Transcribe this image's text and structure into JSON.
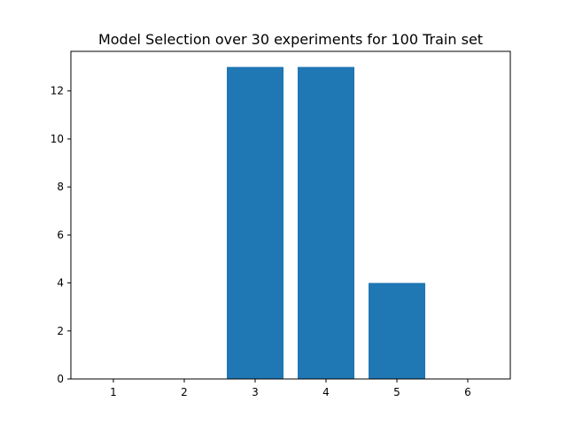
{
  "chart_data": {
    "type": "bar",
    "title": "Model Selection over 30 experiments for 100 Train set",
    "xlabel": "",
    "ylabel": "",
    "categories": [
      "1",
      "2",
      "3",
      "4",
      "5",
      "6"
    ],
    "values": [
      0,
      0,
      13,
      13,
      4,
      0
    ],
    "xlim": [
      0.4,
      6.6
    ],
    "ylim": [
      0,
      13.65
    ],
    "yticks": [
      0,
      2,
      4,
      6,
      8,
      10,
      12
    ],
    "bar_width": 0.8,
    "grid": false,
    "legend": "none",
    "colors": {
      "bar": "#1f77b4",
      "axes": "#000000",
      "background": "#ffffff"
    }
  }
}
